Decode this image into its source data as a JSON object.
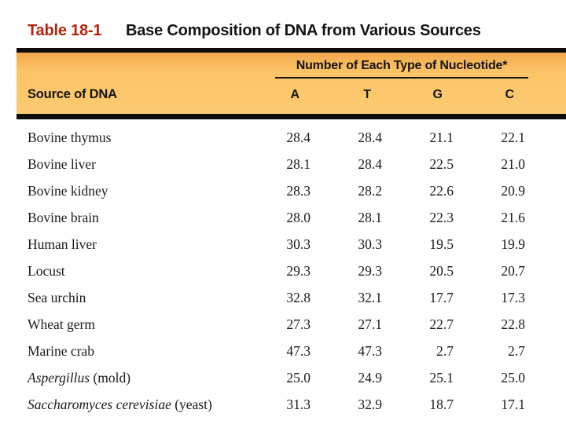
{
  "title": {
    "tag": "Table 18-1",
    "text": "Base Composition of DNA from Various Sources"
  },
  "header": {
    "group_label": "Number of Each Type of Nucleotide*",
    "source_label": "Source of DNA",
    "columns": [
      "A",
      "T",
      "G",
      "C"
    ]
  },
  "rows": [
    {
      "source_italic": "",
      "source_roman": "Bovine thymus",
      "a": "28.4",
      "t": "28.4",
      "g": "21.1",
      "c": "22.1"
    },
    {
      "source_italic": "",
      "source_roman": "Bovine liver",
      "a": "28.1",
      "t": "28.4",
      "g": "22.5",
      "c": "21.0"
    },
    {
      "source_italic": "",
      "source_roman": "Bovine kidney",
      "a": "28.3",
      "t": "28.2",
      "g": "22.6",
      "c": "20.9"
    },
    {
      "source_italic": "",
      "source_roman": "Bovine brain",
      "a": "28.0",
      "t": "28.1",
      "g": "22.3",
      "c": "21.6"
    },
    {
      "source_italic": "",
      "source_roman": "Human liver",
      "a": "30.3",
      "t": "30.3",
      "g": "19.5",
      "c": "19.9"
    },
    {
      "source_italic": "",
      "source_roman": "Locust",
      "a": "29.3",
      "t": "29.3",
      "g": "20.5",
      "c": "20.7"
    },
    {
      "source_italic": "",
      "source_roman": "Sea urchin",
      "a": "32.8",
      "t": "32.1",
      "g": "17.7",
      "c": "17.3"
    },
    {
      "source_italic": "",
      "source_roman": "Wheat germ",
      "a": "27.3",
      "t": "27.1",
      "g": "22.7",
      "c": "22.8"
    },
    {
      "source_italic": "",
      "source_roman": "Marine crab",
      "a": "47.3",
      "t": "47.3",
      "g": "2.7",
      "c": "2.7"
    },
    {
      "source_italic": "Aspergillus",
      "source_roman": " (mold)",
      "a": "25.0",
      "t": "24.9",
      "g": "25.1",
      "c": "25.0"
    },
    {
      "source_italic": "Saccharomyces cerevisiae",
      "source_roman": " (yeast)",
      "a": "31.3",
      "t": "32.9",
      "g": "18.7",
      "c": "17.1"
    }
  ],
  "colors": {
    "band": "#fbc466",
    "band_top": "#f3a94e",
    "title_red": "#b3250e",
    "rule": "#0e0d0b",
    "text": "#1b1b1b"
  },
  "chart_data": {
    "type": "table",
    "title": "Table 18-1  Base Composition of DNA from Various Sources",
    "column_group": "Number of Each Type of Nucleotide*",
    "columns": [
      "Source of DNA",
      "A",
      "T",
      "G",
      "C"
    ],
    "rows": [
      [
        "Bovine thymus",
        28.4,
        28.4,
        21.1,
        22.1
      ],
      [
        "Bovine liver",
        28.1,
        28.4,
        22.5,
        21.0
      ],
      [
        "Bovine kidney",
        28.3,
        28.2,
        22.6,
        20.9
      ],
      [
        "Bovine brain",
        28.0,
        28.1,
        22.3,
        21.6
      ],
      [
        "Human liver",
        30.3,
        30.3,
        19.5,
        19.9
      ],
      [
        "Locust",
        29.3,
        29.3,
        20.5,
        20.7
      ],
      [
        "Sea urchin",
        32.8,
        32.1,
        17.7,
        17.3
      ],
      [
        "Wheat germ",
        27.3,
        27.1,
        22.7,
        22.8
      ],
      [
        "Marine crab",
        47.3,
        47.3,
        2.7,
        2.7
      ],
      [
        "Aspergillus (mold)",
        25.0,
        24.9,
        25.1,
        25.0
      ],
      [
        "Saccharomyces cerevisiae (yeast)",
        31.3,
        32.9,
        18.7,
        17.1
      ]
    ]
  }
}
